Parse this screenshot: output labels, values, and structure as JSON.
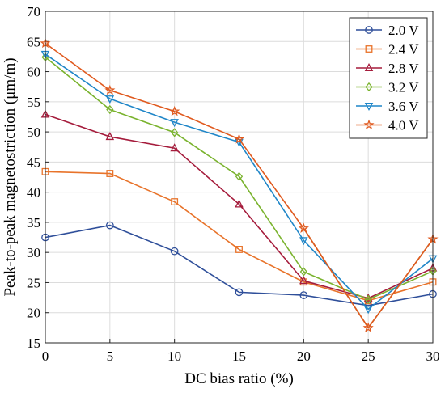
{
  "chart_data": {
    "type": "line",
    "xlabel": "DC bias ratio (%)",
    "ylabel": "Peak-to-peak magnetostriction (μm/m)",
    "xlim": [
      0,
      30
    ],
    "ylim": [
      15,
      70
    ],
    "xticks": [
      0,
      5,
      10,
      15,
      20,
      25,
      30
    ],
    "yticks": [
      15,
      20,
      25,
      30,
      35,
      40,
      45,
      50,
      55,
      60,
      65,
      70
    ],
    "grid": true,
    "legend_position": "top-right",
    "x": [
      0,
      5,
      10,
      15,
      20,
      25,
      30
    ],
    "series": [
      {
        "name": "2.0 V",
        "color": "#2f4f9a",
        "marker": "circle",
        "values": [
          32.5,
          34.5,
          30.2,
          23.4,
          22.9,
          21.2,
          23.1
        ]
      },
      {
        "name": "2.4 V",
        "color": "#e8732a",
        "marker": "square",
        "values": [
          43.4,
          43.1,
          38.4,
          30.5,
          25.1,
          22.0,
          25.1
        ]
      },
      {
        "name": "2.8 V",
        "color": "#a51c3c",
        "marker": "triangle-up",
        "values": [
          52.9,
          49.2,
          47.3,
          38.0,
          25.3,
          22.4,
          27.4
        ]
      },
      {
        "name": "3.2 V",
        "color": "#7ab32e",
        "marker": "diamond",
        "values": [
          62.4,
          53.7,
          49.9,
          42.6,
          26.8,
          22.2,
          26.9
        ]
      },
      {
        "name": "3.6 V",
        "color": "#1f86c8",
        "marker": "triangle-down",
        "values": [
          62.9,
          55.5,
          51.6,
          48.3,
          32.0,
          20.6,
          29.0
        ]
      },
      {
        "name": "4.0 V",
        "color": "#e05a1f",
        "marker": "star",
        "values": [
          64.7,
          56.9,
          53.4,
          48.8,
          34.0,
          17.5,
          32.2
        ]
      }
    ],
    "extra_lines": [
      {
        "color": "#9a7a1f",
        "values": [
          null,
          null,
          null,
          null,
          34.0,
          17.5,
          32.2
        ]
      }
    ]
  }
}
